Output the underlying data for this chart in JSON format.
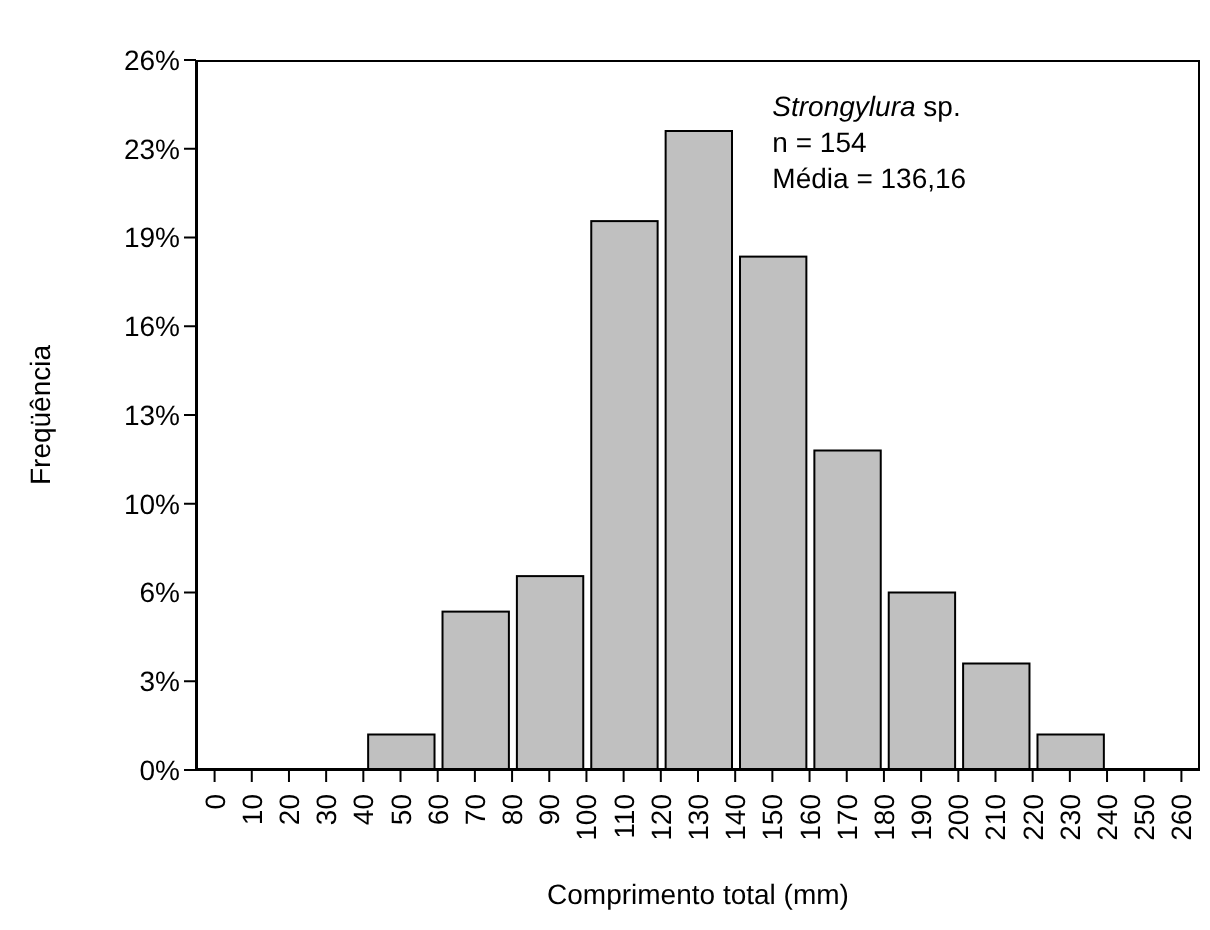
{
  "chart_data": {
    "type": "histogram",
    "xlabel": "Comprimento total (mm)",
    "ylabel": "Freqüência",
    "annotations": [
      "Strongylura sp.",
      "n = 154",
      "Média = 136,16"
    ],
    "bins": [
      0,
      20,
      40,
      60,
      80,
      100,
      120,
      140,
      160,
      180,
      200,
      220,
      240,
      260
    ],
    "values": [
      0,
      0,
      1.3,
      5.8,
      7.1,
      20.1,
      23.4,
      18.8,
      11.7,
      6.5,
      3.9,
      1.3,
      0
    ],
    "color": "#c0c0c0",
    "xlim": [
      -5,
      265
    ],
    "xticks": [
      0,
      10,
      20,
      30,
      40,
      50,
      60,
      70,
      80,
      90,
      100,
      110,
      120,
      130,
      140,
      150,
      160,
      170,
      180,
      190,
      200,
      210,
      220,
      230,
      240,
      250,
      260
    ],
    "ylim": [
      0,
      26
    ],
    "yticks": [
      {
        "value": 0,
        "label": "0%"
      },
      {
        "value": 3.25,
        "label": "3%"
      },
      {
        "value": 6.5,
        "label": "6%"
      },
      {
        "value": 9.75,
        "label": "10%"
      },
      {
        "value": 13,
        "label": "13%"
      },
      {
        "value": 16.25,
        "label": "16%"
      },
      {
        "value": 19.5,
        "label": "19%"
      },
      {
        "value": 22.75,
        "label": "23%"
      },
      {
        "value": 26,
        "label": "26%"
      }
    ]
  }
}
